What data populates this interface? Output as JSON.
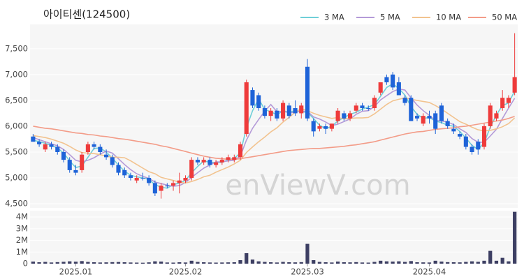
{
  "chart_data": [
    {
      "type": "candlestick",
      "title": "아이티센(124500)",
      "watermark": "enViewV.com",
      "up_color": "#ee3b3b",
      "down_color": "#1e63d8",
      "xlim": [
        -0.5,
        79.5
      ],
      "ylim": [
        4420,
        7970
      ],
      "grid": true,
      "yticks": [
        {
          "value": 4500,
          "label": "4,500"
        },
        {
          "value": 5000,
          "label": "5,000"
        },
        {
          "value": 5500,
          "label": "5,500"
        },
        {
          "value": 6000,
          "label": "6,000"
        },
        {
          "value": 6500,
          "label": "6,500"
        },
        {
          "value": 7000,
          "label": "7,000"
        },
        {
          "value": 7500,
          "label": "7,500"
        }
      ],
      "open": [
        5800,
        5700,
        5550,
        5650,
        5600,
        5500,
        5350,
        5150,
        5150,
        5500,
        5650,
        5600,
        5450,
        5400,
        5250,
        5150,
        5050,
        4950,
        5000,
        5000,
        4900,
        4750,
        4850,
        4850,
        4900,
        4950,
        5000,
        5350,
        5300,
        5350,
        5250,
        5300,
        5350,
        5350,
        5400,
        5850,
        6700,
        6600,
        6350,
        6200,
        6300,
        6150,
        6400,
        6350,
        6250,
        7150,
        6100,
        5950,
        6000,
        5950,
        6100,
        6250,
        6150,
        6300,
        6400,
        6350,
        6350,
        6650,
        6950,
        7000,
        6850,
        6550,
        6550,
        6200,
        6050,
        6200,
        6250,
        6400,
        6100,
        5950,
        5850,
        5800,
        5600,
        5700,
        5600,
        6000,
        6150,
        6350,
        6450,
        6650
      ],
      "high": [
        5850,
        5750,
        5700,
        5700,
        5650,
        5550,
        5400,
        5250,
        5500,
        5700,
        5700,
        5650,
        5550,
        5450,
        5300,
        5200,
        5100,
        5050,
        5100,
        5050,
        4950,
        4900,
        4900,
        4950,
        5100,
        5050,
        5400,
        5400,
        5400,
        5400,
        5350,
        5400,
        5450,
        5450,
        5700,
        6900,
        6750,
        6650,
        6400,
        6350,
        6350,
        6500,
        6450,
        6500,
        6450,
        7300,
        6150,
        6050,
        6050,
        6050,
        6350,
        6300,
        6300,
        6450,
        6450,
        6400,
        6600,
        6850,
        7000,
        7050,
        6950,
        6600,
        6600,
        6250,
        6250,
        6300,
        6300,
        6450,
        6150,
        6050,
        5900,
        5850,
        5650,
        5750,
        6050,
        6450,
        6300,
        6700,
        6600,
        7800
      ],
      "low": [
        5700,
        5600,
        5500,
        5550,
        5450,
        5300,
        5100,
        5050,
        5100,
        5450,
        5550,
        5450,
        5350,
        5200,
        5050,
        5000,
        4950,
        4900,
        4950,
        4850,
        4650,
        4600,
        4800,
        4750,
        4700,
        4900,
        4950,
        5250,
        5250,
        5200,
        5200,
        5250,
        5300,
        5300,
        5350,
        5800,
        6350,
        6300,
        6150,
        6100,
        6100,
        6100,
        6150,
        6200,
        6150,
        6100,
        5800,
        5900,
        5850,
        5900,
        6050,
        6100,
        6100,
        6250,
        6300,
        6300,
        6300,
        6600,
        6800,
        6700,
        6600,
        6400,
        6100,
        6100,
        6000,
        6050,
        5850,
        6050,
        5950,
        5850,
        5750,
        5550,
        5450,
        5450,
        5550,
        5950,
        6100,
        6300,
        6350,
        6600
      ],
      "close": [
        5700,
        5650,
        5650,
        5600,
        5500,
        5350,
        5150,
        5100,
        5450,
        5650,
        5600,
        5500,
        5400,
        5250,
        5100,
        5050,
        5000,
        5000,
        5000,
        4900,
        4700,
        4850,
        4850,
        4900,
        4950,
        5000,
        5350,
        5300,
        5350,
        5250,
        5300,
        5350,
        5400,
        5400,
        5650,
        6850,
        6400,
        6350,
        6200,
        6300,
        6150,
        6450,
        6200,
        6250,
        6400,
        6150,
        5900,
        6000,
        5950,
        6050,
        6300,
        6150,
        6250,
        6400,
        6350,
        6350,
        6550,
        6850,
        6850,
        6750,
        6600,
        6450,
        6100,
        6150,
        6200,
        6150,
        5950,
        6100,
        6000,
        5900,
        5800,
        5600,
        5500,
        5550,
        6000,
        6400,
        6250,
        6550,
        6550,
        6950
      ],
      "series": [
        {
          "name": "3 MA",
          "color": "#6fcfd8",
          "values": [
            5730,
            5700,
            5670,
            5630,
            5580,
            5480,
            5330,
            5200,
            5230,
            5400,
            5570,
            5580,
            5500,
            5380,
            5250,
            5130,
            5050,
            5020,
            5000,
            4970,
            4870,
            4820,
            4800,
            4870,
            4900,
            4950,
            5100,
            5220,
            5330,
            5300,
            5300,
            5300,
            5350,
            5380,
            5480,
            5970,
            6300,
            6530,
            6320,
            6280,
            6220,
            6300,
            6270,
            6300,
            6280,
            6270,
            6150,
            6020,
            5950,
            6000,
            6100,
            6170,
            6230,
            6270,
            6330,
            6370,
            6420,
            6580,
            6750,
            6820,
            6730,
            6600,
            6380,
            6230,
            6150,
            6170,
            6100,
            6070,
            6020,
            6000,
            5900,
            5770,
            5630,
            5550,
            5680,
            5980,
            6220,
            6400,
            6450,
            6680
          ]
        },
        {
          "name": "5 MA",
          "color": "#b49ad8",
          "values": [
            5780,
            5740,
            5700,
            5660,
            5620,
            5550,
            5450,
            5340,
            5310,
            5340,
            5390,
            5460,
            5520,
            5480,
            5370,
            5260,
            5160,
            5080,
            5030,
            4990,
            4920,
            4890,
            4860,
            4840,
            4850,
            4910,
            5010,
            5100,
            5190,
            5250,
            5310,
            5310,
            5330,
            5340,
            5420,
            5730,
            5960,
            6130,
            6290,
            6420,
            6280,
            6290,
            6260,
            6270,
            6290,
            6290,
            6180,
            6140,
            6080,
            6010,
            6040,
            6090,
            6140,
            6230,
            6290,
            6300,
            6380,
            6510,
            6590,
            6670,
            6720,
            6700,
            6550,
            6410,
            6300,
            6210,
            6110,
            6100,
            6080,
            6030,
            5950,
            5880,
            5760,
            5690,
            5690,
            5810,
            5940,
            6150,
            6350,
            6540
          ]
        },
        {
          "name": "10 MA",
          "color": "#f2c38f",
          "values": [
            5820,
            5800,
            5780,
            5750,
            5710,
            5670,
            5610,
            5540,
            5490,
            5480,
            5470,
            5450,
            5420,
            5400,
            5400,
            5390,
            5330,
            5260,
            5190,
            5120,
            5080,
            5010,
            4980,
            4950,
            4920,
            4900,
            4930,
            4970,
            5020,
            5050,
            5110,
            5160,
            5210,
            5270,
            5340,
            5490,
            5600,
            5700,
            5790,
            5890,
            5970,
            6080,
            6170,
            6270,
            6340,
            6300,
            6250,
            6210,
            6180,
            6150,
            6170,
            6140,
            6150,
            6160,
            6160,
            6170,
            6240,
            6330,
            6420,
            6490,
            6520,
            6550,
            6520,
            6500,
            6480,
            6460,
            6400,
            6330,
            6250,
            6170,
            6090,
            6040,
            5980,
            5930,
            5910,
            5920,
            5950,
            5990,
            6050,
            6160
          ]
        },
        {
          "name": "50 MA",
          "color": "#f39c88",
          "values": [
            6000,
            5980,
            5960,
            5950,
            5930,
            5910,
            5890,
            5870,
            5860,
            5840,
            5830,
            5810,
            5800,
            5780,
            5760,
            5750,
            5730,
            5710,
            5690,
            5670,
            5650,
            5620,
            5600,
            5570,
            5540,
            5510,
            5480,
            5450,
            5420,
            5400,
            5380,
            5370,
            5360,
            5360,
            5370,
            5390,
            5410,
            5430,
            5450,
            5470,
            5490,
            5510,
            5530,
            5540,
            5550,
            5560,
            5570,
            5570,
            5580,
            5590,
            5600,
            5610,
            5630,
            5640,
            5660,
            5680,
            5700,
            5730,
            5760,
            5790,
            5820,
            5850,
            5870,
            5890,
            5900,
            5920,
            5940,
            5950,
            5960,
            5970,
            5990,
            6000,
            6020,
            6040,
            6060,
            6080,
            6100,
            6120,
            6150,
            6190
          ]
        }
      ]
    },
    {
      "type": "bar",
      "color": "#3d3f63",
      "xlim": [
        -0.5,
        79.5
      ],
      "ylim": [
        0,
        4550000
      ],
      "grid": true,
      "yticks": [
        0,
        {
          "value": 1000000,
          "label": "1M"
        },
        {
          "value": 2000000,
          "label": "2M"
        },
        {
          "value": 3000000,
          "label": "3M"
        },
        {
          "value": 4000000,
          "label": "4M"
        }
      ],
      "xticks": [
        {
          "value": 7,
          "label": "2025.01"
        },
        {
          "value": 25,
          "label": "2025.02"
        },
        {
          "value": 45,
          "label": "2025.03"
        },
        {
          "value": 65,
          "label": "2025.04"
        }
      ],
      "values": [
        180000,
        120000,
        150000,
        100000,
        130000,
        160000,
        200000,
        170000,
        220000,
        150000,
        120000,
        100000,
        110000,
        130000,
        140000,
        120000,
        100000,
        90000,
        80000,
        110000,
        200000,
        180000,
        100000,
        90000,
        120000,
        100000,
        250000,
        150000,
        120000,
        100000,
        90000,
        100000,
        110000,
        120000,
        300000,
        900000,
        350000,
        200000,
        150000,
        120000,
        100000,
        150000,
        120000,
        110000,
        130000,
        1700000,
        300000,
        150000,
        120000,
        100000,
        180000,
        120000,
        110000,
        130000,
        100000,
        90000,
        150000,
        250000,
        200000,
        180000,
        200000,
        150000,
        220000,
        120000,
        110000,
        100000,
        250000,
        180000,
        130000,
        120000,
        110000,
        150000,
        200000,
        160000,
        250000,
        1100000,
        250000,
        500000,
        200000,
        4450000
      ]
    }
  ]
}
